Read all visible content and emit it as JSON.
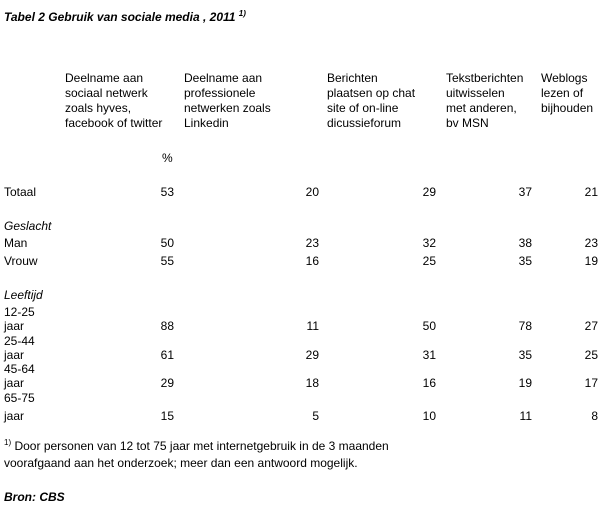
{
  "title": "Tabel 2 Gebruik van sociale media , 2011",
  "title_note": "1)",
  "columns": [
    [
      "Deelname aan",
      "sociaal netwerk",
      "zoals hyves,",
      "facebook of twitter"
    ],
    [
      "Deelname aan",
      "professionele",
      "netwerken zoals",
      "Linkedin"
    ],
    [
      "Berichten",
      "plaatsen op chat",
      "site of on-line",
      "dicussieforum"
    ],
    [
      "Tekstberichten",
      "uitwisselen",
      "met anderen,",
      "bv MSN"
    ],
    [
      "Weblogs",
      "lezen of",
      "bijhouden"
    ]
  ],
  "unit": "%",
  "rows": [
    {
      "label": [
        "Totaal"
      ],
      "values": [
        53,
        20,
        29,
        37,
        21
      ]
    },
    {
      "section": "Geslacht"
    },
    {
      "label": [
        "Man"
      ],
      "values": [
        50,
        23,
        32,
        38,
        23
      ]
    },
    {
      "label": [
        "Vrouw"
      ],
      "values": [
        55,
        16,
        25,
        35,
        19
      ]
    },
    {
      "section": "Leeftijd"
    },
    {
      "label": [
        "12-25",
        "jaar"
      ],
      "values": [
        88,
        11,
        50,
        78,
        27
      ]
    },
    {
      "label": [
        "25-44",
        "jaar"
      ],
      "values": [
        61,
        29,
        31,
        35,
        25
      ]
    },
    {
      "label": [
        "45-64",
        "jaar"
      ],
      "values": [
        29,
        18,
        16,
        19,
        17
      ]
    },
    {
      "label": [
        "65-75",
        "jaar"
      ],
      "values": [
        15,
        5,
        10,
        11,
        8
      ]
    }
  ],
  "footnote": {
    "mark": "1)",
    "lines": [
      "Door personen van 12 tot 75 jaar met internetgebruik in de 3 maanden",
      "voorafgaand aan het onderzoek; meer dan een antwoord mogelijk."
    ]
  },
  "source": "Bron: CBS"
}
